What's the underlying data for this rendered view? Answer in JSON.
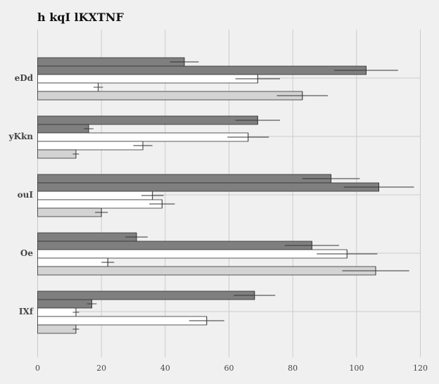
{
  "chart_data": {
    "type": "bar",
    "orientation": "horizontal",
    "title": "h kqI lKXTNF",
    "xlabel": "",
    "ylabel": "",
    "xlim": [
      0,
      120
    ],
    "xticks": [
      0,
      20,
      40,
      60,
      80,
      100,
      120
    ],
    "grid": true,
    "categories": [
      "eDd",
      "yKkn",
      "ouI",
      "Oe",
      "IXf"
    ],
    "series": [
      {
        "color": "#7f7f7f",
        "values": [
          46,
          69,
          92,
          31,
          68
        ],
        "errors": [
          4.5,
          7,
          9,
          3.5,
          6.5
        ]
      },
      {
        "color": "#7f7f7f",
        "values": [
          103,
          16,
          107,
          86,
          17
        ],
        "errors": [
          10,
          1.5,
          11,
          8.5,
          1.5
        ]
      },
      {
        "color": "#ffffff",
        "values": [
          69,
          66,
          36,
          97,
          12
        ],
        "errors": [
          7,
          6.5,
          3.5,
          9.5,
          1
        ]
      },
      {
        "color": "#ffffff",
        "values": [
          19,
          33,
          39,
          22,
          53
        ],
        "errors": [
          1.5,
          3,
          4,
          2,
          5.5
        ]
      },
      {
        "color": "#d3d3d3",
        "values": [
          83,
          12,
          20,
          106,
          12
        ],
        "errors": [
          8,
          1,
          2,
          10.5,
          1
        ]
      }
    ]
  }
}
